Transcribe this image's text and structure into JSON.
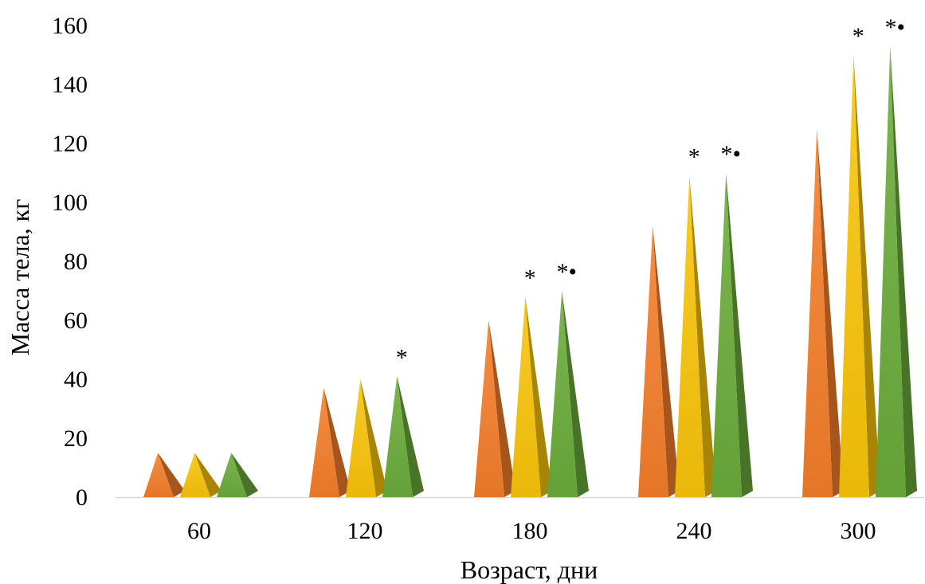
{
  "chart_data": {
    "type": "bar",
    "bar_shape": "pyramid",
    "xlabel": "Возраст, дни",
    "ylabel": "Масса тела, кг",
    "categories": [
      "60",
      "120",
      "180",
      "240",
      "300"
    ],
    "ylim": [
      0,
      160
    ],
    "yticks": [
      0,
      20,
      40,
      60,
      80,
      100,
      120,
      140,
      160
    ],
    "grid": false,
    "legend": "none",
    "series": [
      {
        "color": "#f47e2a",
        "values": [
          15,
          37,
          60,
          92,
          125
        ]
      },
      {
        "color": "#f8c40a",
        "values": [
          15,
          40,
          68,
          109,
          150
        ]
      },
      {
        "color": "#6aab3a",
        "values": [
          15,
          41,
          70,
          110,
          153
        ]
      }
    ],
    "annotations": [
      {
        "category": 1,
        "series": 2,
        "text": "*"
      },
      {
        "category": 2,
        "series": 1,
        "text": "*"
      },
      {
        "category": 2,
        "series": 2,
        "text": "*•"
      },
      {
        "category": 3,
        "series": 1,
        "text": "*"
      },
      {
        "category": 3,
        "series": 2,
        "text": "*•"
      },
      {
        "category": 4,
        "series": 1,
        "text": "*"
      },
      {
        "category": 4,
        "series": 2,
        "text": "*•"
      }
    ]
  }
}
